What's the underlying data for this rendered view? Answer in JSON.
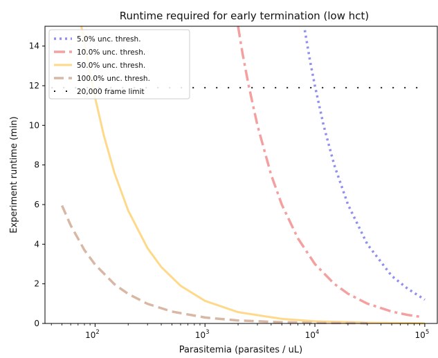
{
  "chart_data": {
    "type": "line",
    "title": "Runtime required for early termination (low hct)",
    "xlabel": "Parasitemia (parasites  / uL)",
    "ylabel": "Experiment runtime (min)",
    "xscale": "log",
    "xlim": [
      35,
      130000
    ],
    "ylim": [
      0,
      15
    ],
    "x_ticks": [
      {
        "value": 100,
        "base": "10",
        "exp": "2"
      },
      {
        "value": 1000,
        "base": "10",
        "exp": "3"
      },
      {
        "value": 10000,
        "base": "10",
        "exp": "4"
      },
      {
        "value": 100000,
        "base": "10",
        "exp": "5"
      }
    ],
    "y_ticks": [
      0,
      2,
      4,
      6,
      8,
      10,
      12,
      14
    ],
    "legend_position": "top-left",
    "grid": false,
    "series": [
      {
        "name": "5.0% unc. thresh.",
        "color": "#8f8ff0",
        "style": "dotted",
        "x": [
          8100,
          9000,
          10000,
          12000,
          15000,
          20000,
          30000,
          50000,
          70000,
          100000
        ],
        "y": [
          14.8,
          13.3,
          12.0,
          10.0,
          8.0,
          6.0,
          4.0,
          2.4,
          1.75,
          1.2
        ]
      },
      {
        "name": "10.0% unc. thresh.",
        "color": "#f4a0a0",
        "style": "dashdot",
        "x": [
          2000,
          2200,
          2500,
          3000,
          4000,
          5000,
          7000,
          10000,
          15000,
          20000,
          30000,
          50000,
          70000,
          95000
        ],
        "y": [
          15.0,
          13.6,
          12.0,
          10.0,
          7.5,
          6.0,
          4.3,
          3.0,
          2.0,
          1.5,
          1.0,
          0.6,
          0.43,
          0.32
        ]
      },
      {
        "name": "50.0% unc. thresh.",
        "color": "#ffd98a",
        "style": "solid",
        "x": [
          75,
          80,
          90,
          100,
          120,
          150,
          200,
          300,
          400,
          600,
          1000,
          2000,
          5000,
          10000,
          30000,
          100000
        ],
        "y": [
          15.0,
          14.2,
          12.6,
          11.4,
          9.5,
          7.6,
          5.7,
          3.8,
          2.85,
          1.9,
          1.14,
          0.57,
          0.23,
          0.11,
          0.04,
          0.01
        ]
      },
      {
        "name": "100.0% unc. thresh.",
        "color": "#d8b8a4",
        "style": "dashed",
        "x": [
          50,
          60,
          80,
          100,
          150,
          200,
          300,
          500,
          1000,
          2000,
          5000,
          10000,
          30000
        ],
        "y": [
          5.95,
          4.95,
          3.7,
          2.97,
          1.98,
          1.49,
          0.99,
          0.6,
          0.3,
          0.15,
          0.06,
          0.03,
          0.01
        ]
      },
      {
        "name": "20,000 frame limit",
        "color": "#111111",
        "style": "sparse-dotted",
        "x": [
          40,
          100000
        ],
        "y": [
          11.9,
          11.9
        ]
      }
    ]
  }
}
